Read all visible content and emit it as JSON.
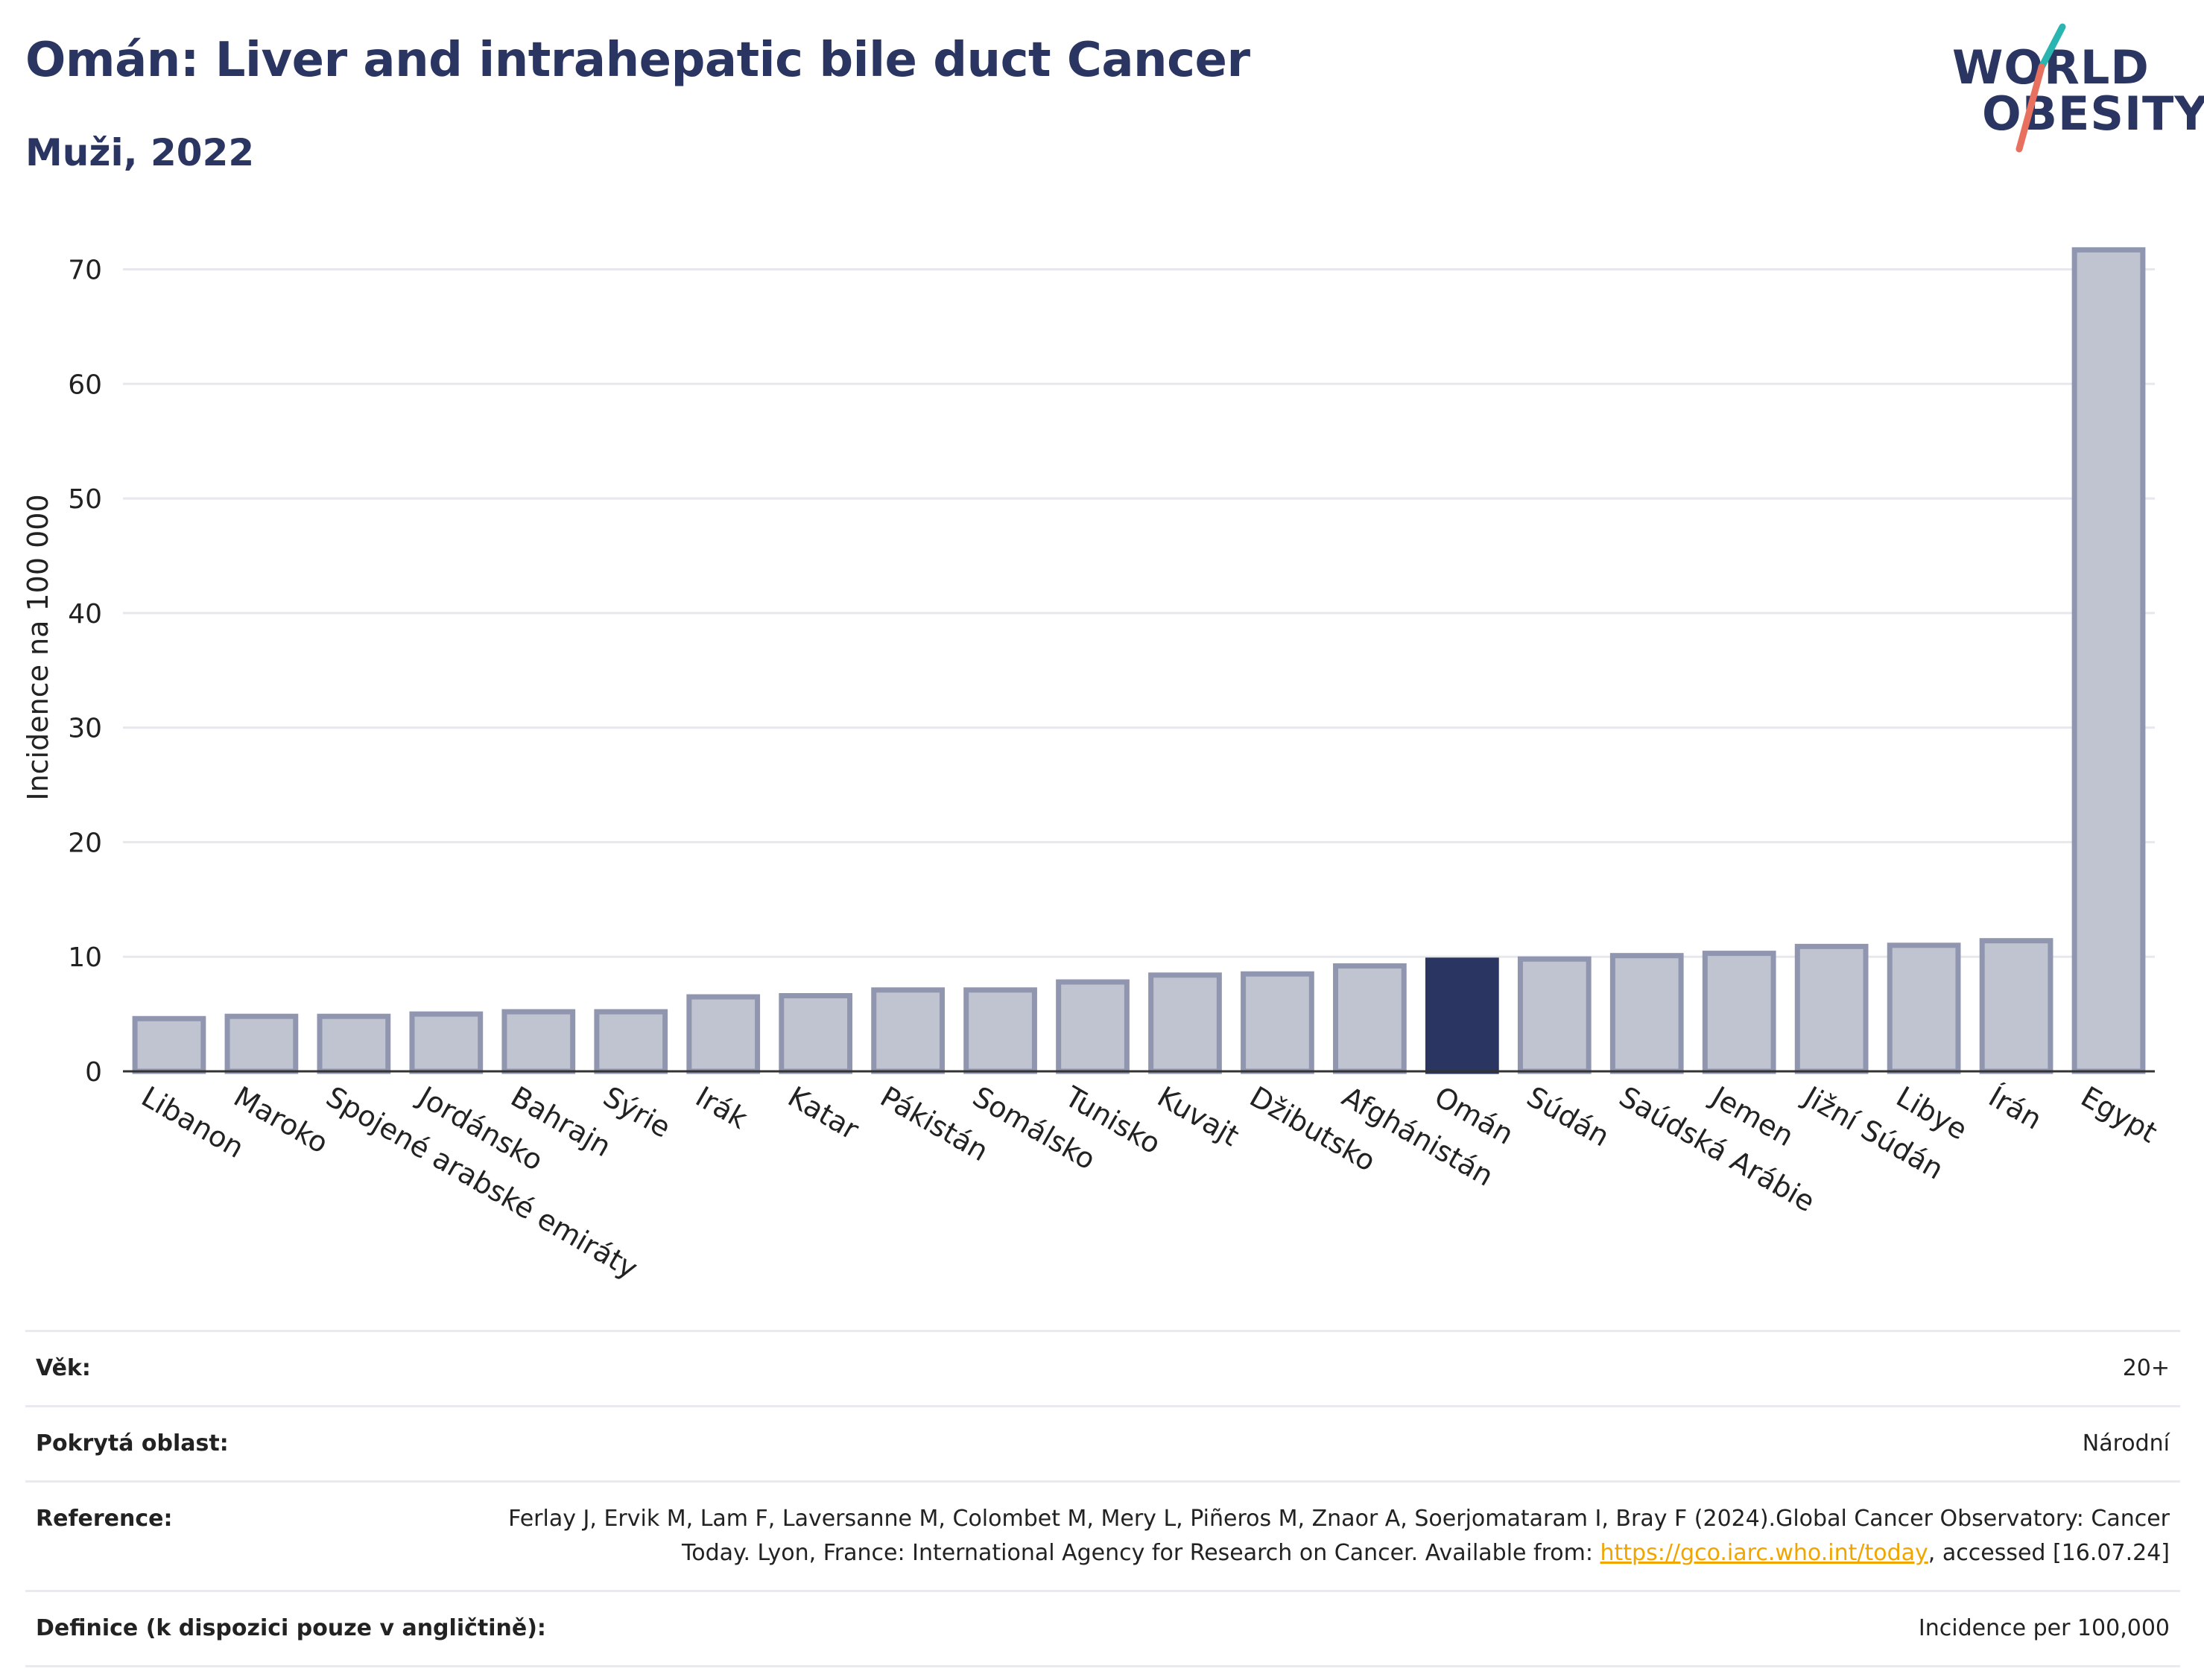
{
  "header": {
    "title": "Omán: Liver and intrahepatic bile duct Cancer",
    "subtitle": "Muži, 2022"
  },
  "logo": {
    "line1": "WORLD",
    "line2": "OBESITY",
    "icon": "world-obesity-logo",
    "colors": {
      "navy": "#2a3562",
      "teal": "#2bb5b0",
      "coral": "#e8705e"
    }
  },
  "chart_data": {
    "type": "bar",
    "title": "Omán: Liver and intrahepatic bile duct Cancer",
    "subtitle": "Muži, 2022",
    "ylabel": "Incidence na 100 000",
    "xlabel": "",
    "ylim": [
      0,
      74
    ],
    "yticks": [
      0,
      10,
      20,
      30,
      40,
      50,
      60,
      70
    ],
    "grid": true,
    "highlight": "Omán",
    "colors": {
      "bar": "#c0c3d0",
      "bar_border": "#9096b0",
      "highlight": "#2a3562",
      "grid": "#e6e8ee"
    },
    "categories": [
      "Libanon",
      "Maroko",
      "Spojené arabské emiráty",
      "Jordánsko",
      "Bahrajn",
      "Sýrie",
      "Irák",
      "Katar",
      "Pákistán",
      "Somálsko",
      "Tunisko",
      "Kuvajt",
      "Džibutsko",
      "Afghánistán",
      "Omán",
      "Súdán",
      "Saúdská Arábie",
      "Jemen",
      "Jižní Súdán",
      "Libye",
      "Írán",
      "Egypt"
    ],
    "values": [
      4.6,
      4.8,
      4.8,
      5.0,
      5.2,
      5.2,
      6.5,
      6.6,
      7.1,
      7.1,
      7.8,
      8.4,
      8.5,
      9.2,
      9.7,
      9.8,
      10.1,
      10.3,
      10.9,
      11.0,
      11.4,
      71.7
    ]
  },
  "meta": {
    "age_label": "Věk:",
    "age_value": "20+",
    "area_label": "Pokrytá oblast:",
    "area_value": "Národní",
    "ref_label": "Reference:",
    "ref_text_1": "Ferlay J, Ervik M, Lam F, Laversanne M, Colombet M, Mery L, Piñeros M, Znaor A, Soerjomataram I, Bray F (2024).Global Cancer Observatory: Cancer Today. Lyon, France: International Agency for Research on Cancer. Available from: ",
    "ref_link": "https://gco.iarc.who.int/today",
    "ref_text_2": ", accessed [16.07.24]",
    "def_label": "Definice (k dispozici pouze v angličtině):",
    "def_value": "Incidence per 100,000"
  }
}
